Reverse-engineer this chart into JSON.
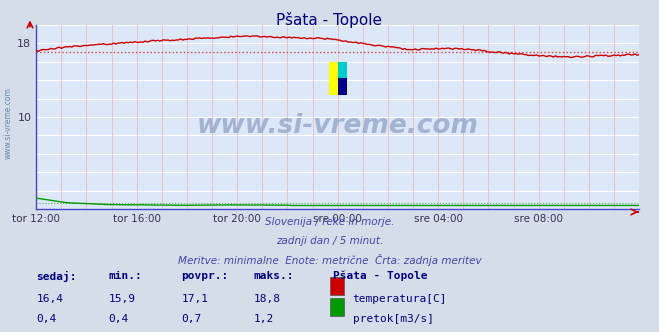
{
  "title": "Pšata - Topole",
  "bg_color": "#d4dde8",
  "plot_bg_color": "#dce8f8",
  "grid_color": "#ffffff",
  "grid_minor_color": "#f0b8b8",
  "xlabel": "",
  "ylabel": "",
  "xlim": [
    0,
    288
  ],
  "ylim": [
    0,
    20
  ],
  "ytick_positions": [
    10,
    18
  ],
  "xtick_labels": [
    "tor 12:00",
    "tor 16:00",
    "tor 20:00",
    "sre 00:00",
    "sre 04:00",
    "sre 08:00"
  ],
  "xtick_positions": [
    0,
    48,
    96,
    144,
    192,
    240
  ],
  "temp_avg": 17.1,
  "flow_avg": 0.7,
  "watermark": "www.si-vreme.com",
  "subtitle1": "Slovenija / reke in morje.",
  "subtitle2": "zadnji dan / 5 minut.",
  "subtitle3": "Meritve: minimalne  Enote: metrične  Črta: zadnja meritev",
  "legend_title": "Pšata - Topole",
  "legend_items": [
    {
      "label": "temperatura[C]",
      "color": "#cc0000"
    },
    {
      "label": "pretok[m3/s]",
      "color": "#009900"
    }
  ],
  "table_headers": [
    "sedaj:",
    "min.:",
    "povpr.:",
    "maks.:"
  ],
  "table_rows": [
    {
      "values": [
        "16,4",
        "15,9",
        "17,1",
        "18,8"
      ]
    },
    {
      "values": [
        "0,4",
        "0,4",
        "0,7",
        "1,2"
      ]
    }
  ],
  "temp_color": "#cc0000",
  "flow_color": "#009900",
  "temp_dotted_color": "#cc4444",
  "watermark_color": "#99aacc",
  "title_color": "#000080",
  "text_color": "#4444aa",
  "side_text_color": "#6688aa"
}
